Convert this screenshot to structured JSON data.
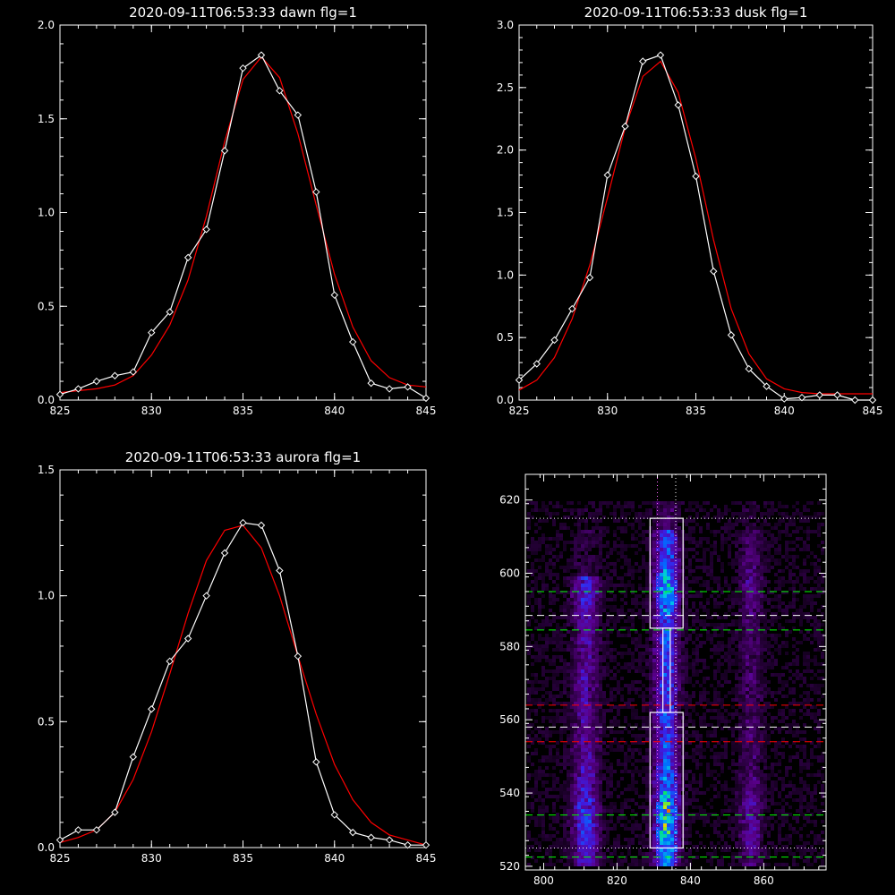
{
  "chart_data": [
    {
      "type": "line",
      "title": "2020-09-11T06:53:33 dawn flg=1",
      "xlim": [
        825,
        845
      ],
      "ylim": [
        0,
        2.0
      ],
      "xticks": [
        "825",
        "830",
        "835",
        "840",
        "845"
      ],
      "yticks": [
        "0.0",
        "0.5",
        "1.0",
        "1.5",
        "2.0"
      ],
      "x": [
        825,
        826,
        827,
        828,
        829,
        830,
        831,
        832,
        833,
        834,
        835,
        836,
        837,
        838,
        839,
        840,
        841,
        842,
        843,
        844,
        845
      ],
      "series": [
        {
          "values": [
            0.03,
            0.06,
            0.1,
            0.13,
            0.15,
            0.36,
            0.47,
            0.76,
            0.91,
            1.33,
            1.77,
            1.84,
            1.65,
            1.52,
            1.11,
            0.56,
            0.31,
            0.09,
            0.06,
            0.07,
            0.01
          ],
          "color": "#ffffff",
          "markers": "diamond"
        },
        {
          "values": [
            0.04,
            0.05,
            0.06,
            0.08,
            0.13,
            0.24,
            0.4,
            0.64,
            0.98,
            1.38,
            1.71,
            1.83,
            1.72,
            1.42,
            1.04,
            0.67,
            0.39,
            0.21,
            0.12,
            0.08,
            0.07
          ],
          "color": "#ff0000"
        }
      ]
    },
    {
      "type": "line",
      "title": "2020-09-11T06:53:33 dusk flg=1",
      "xlim": [
        825,
        845
      ],
      "ylim": [
        0,
        3.0
      ],
      "xticks": [
        "825",
        "830",
        "835",
        "840",
        "845"
      ],
      "yticks": [
        "0.0",
        "0.5",
        "1.0",
        "1.5",
        "2.0",
        "2.5",
        "3.0"
      ],
      "x": [
        825,
        826,
        827,
        828,
        829,
        830,
        831,
        832,
        833,
        834,
        835,
        836,
        837,
        838,
        839,
        840,
        841,
        842,
        843,
        844,
        845
      ],
      "series": [
        {
          "values": [
            0.16,
            0.29,
            0.48,
            0.73,
            0.98,
            1.8,
            2.19,
            2.71,
            2.76,
            2.36,
            1.79,
            1.03,
            0.52,
            0.25,
            0.11,
            0.01,
            0.02,
            0.04,
            0.04,
            0.0,
            0.0
          ],
          "color": "#ffffff",
          "markers": "diamond"
        },
        {
          "values": [
            0.08,
            0.16,
            0.34,
            0.65,
            1.08,
            1.62,
            2.18,
            2.59,
            2.71,
            2.46,
            1.93,
            1.28,
            0.73,
            0.37,
            0.17,
            0.09,
            0.06,
            0.05,
            0.05,
            0.05,
            0.05
          ],
          "color": "#ff0000"
        }
      ]
    },
    {
      "type": "line",
      "title": "2020-09-11T06:53:33 aurora flg=1",
      "xlim": [
        825,
        845
      ],
      "ylim": [
        0,
        1.5
      ],
      "xticks": [
        "825",
        "830",
        "835",
        "840",
        "845"
      ],
      "yticks": [
        "0.0",
        "0.5",
        "1.0",
        "1.5"
      ],
      "x": [
        825,
        826,
        827,
        828,
        829,
        830,
        831,
        832,
        833,
        834,
        835,
        836,
        837,
        838,
        839,
        840,
        841,
        842,
        843,
        844,
        845
      ],
      "series": [
        {
          "values": [
            0.03,
            0.07,
            0.07,
            0.14,
            0.36,
            0.55,
            0.74,
            0.83,
            1.0,
            1.17,
            1.29,
            1.28,
            1.1,
            0.76,
            0.34,
            0.13,
            0.06,
            0.04,
            0.03,
            0.01,
            0.01
          ],
          "color": "#ffffff",
          "markers": "diamond"
        },
        {
          "values": [
            0.02,
            0.04,
            0.07,
            0.14,
            0.27,
            0.46,
            0.69,
            0.93,
            1.14,
            1.26,
            1.28,
            1.19,
            1.0,
            0.76,
            0.53,
            0.33,
            0.19,
            0.1,
            0.05,
            0.03,
            0.01
          ],
          "color": "#ff0000"
        }
      ]
    },
    {
      "type": "heatmap",
      "xlim": [
        795,
        877
      ],
      "ylim": [
        519,
        627
      ],
      "xticks": [
        "800",
        "820",
        "840",
        "860"
      ],
      "yticks": [
        "520",
        "540",
        "560",
        "580",
        "600",
        "620"
      ],
      "stripes": [
        {
          "center": 811,
          "width": 3.5,
          "strength": 0.55
        },
        {
          "center": 833,
          "width": 3.2,
          "strength": 1.0
        },
        {
          "center": 856,
          "width": 3.0,
          "strength": 0.32
        }
      ],
      "boxes": [
        {
          "x0": 829,
          "x1": 838,
          "y0": 525,
          "y1": 562
        },
        {
          "x0": 829,
          "x1": 838,
          "y0": 585,
          "y1": 615
        }
      ],
      "connector": {
        "x0": 832.5,
        "x1": 834.5,
        "y0": 562,
        "y1": 585
      },
      "vlines": [
        {
          "x": 831,
          "color": "#ff66ff",
          "style": "dotted"
        },
        {
          "x": 836,
          "color": "#ffffff",
          "style": "dotted"
        }
      ],
      "hlines": [
        {
          "y": 615,
          "color": "#ffffff",
          "style": "dotted"
        },
        {
          "y": 595,
          "color": "#00ff00",
          "style": "dashed"
        },
        {
          "y": 588.5,
          "color": "#ffffff",
          "style": "dashed"
        },
        {
          "y": 584.5,
          "color": "#00ff00",
          "style": "dashed"
        },
        {
          "y": 564,
          "color": "#ff0000",
          "style": "dashed"
        },
        {
          "y": 558,
          "color": "#ffffff",
          "style": "dashed"
        },
        {
          "y": 554,
          "color": "#ff0000",
          "style": "dashed"
        },
        {
          "y": 534,
          "color": "#00ff00",
          "style": "dashed"
        },
        {
          "y": 525,
          "color": "#ffffff",
          "style": "dotted"
        },
        {
          "y": 522.5,
          "color": "#00ff00",
          "style": "dashed"
        }
      ]
    }
  ]
}
